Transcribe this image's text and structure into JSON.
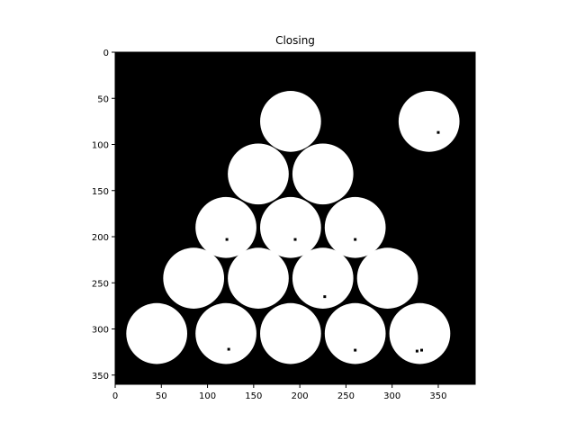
{
  "plot": {
    "title": "Closing",
    "image": {
      "width": 390,
      "height": 360,
      "background": "#000000",
      "foreground": "#ffffff",
      "xticks": [
        0,
        50,
        100,
        150,
        200,
        250,
        300,
        350
      ],
      "yticks": [
        0,
        50,
        100,
        150,
        200,
        250,
        300,
        350
      ]
    }
  }
}
